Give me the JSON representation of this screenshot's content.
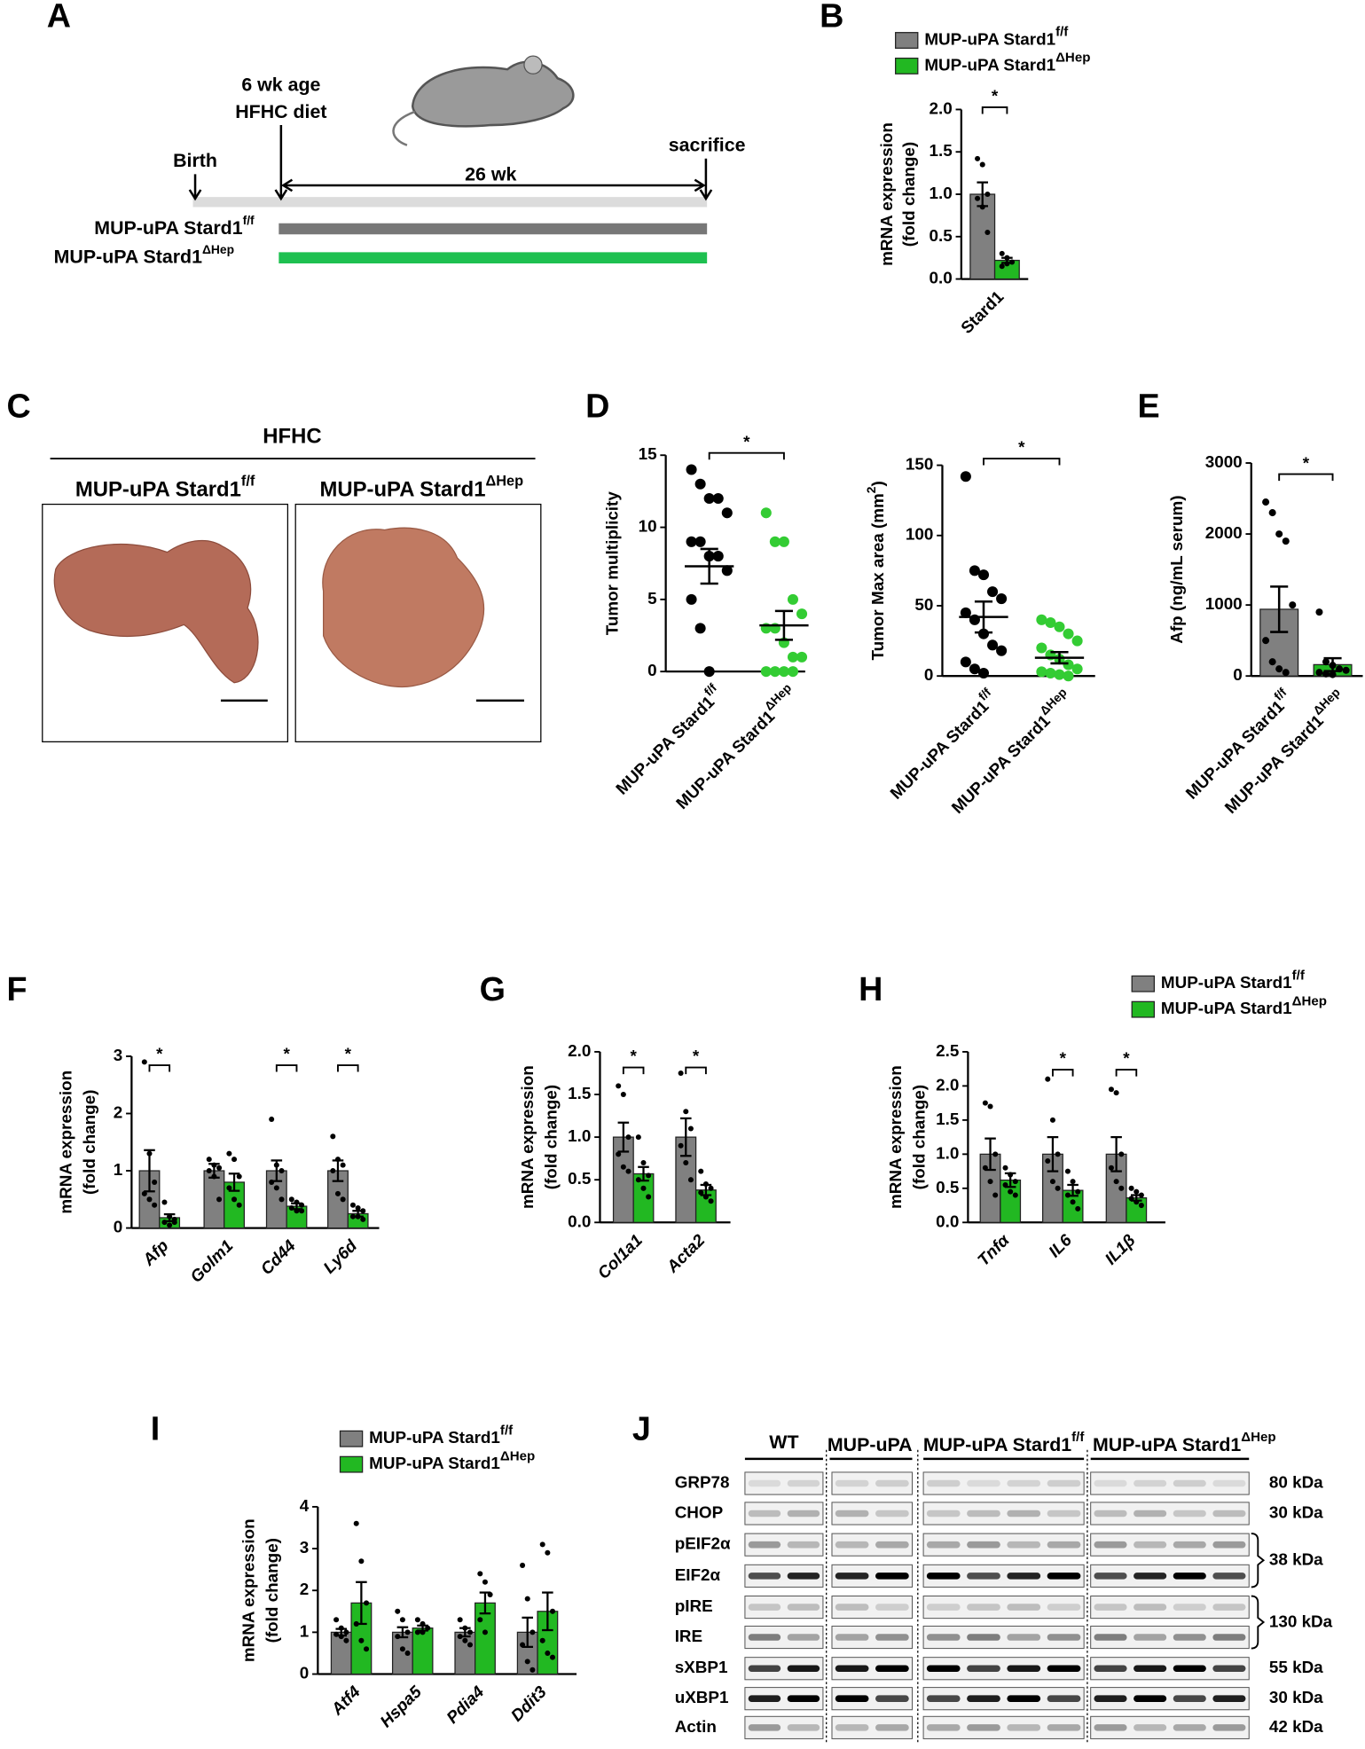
{
  "panels": [
    "A",
    "B",
    "C",
    "D",
    "E",
    "F",
    "G",
    "H",
    "I",
    "J"
  ],
  "timeline": {
    "age": "6 wk age",
    "diet": "HFHC diet",
    "birth": "Birth",
    "duration": "26 wk",
    "end": "sacrifice",
    "groups": [
      {
        "name": "MUP-uPA Stard1",
        "sup": "f/f"
      },
      {
        "name": "MUP-uPA Stard1",
        "sup": "ΔHep"
      }
    ]
  },
  "liver": {
    "condition": "HFHC",
    "groups": [
      {
        "name": "MUP-uPA Stard1",
        "sup": "f/f"
      },
      {
        "name": "MUP-uPA Stard1",
        "sup": "ΔHep"
      }
    ]
  },
  "blot": {
    "groups": [
      {
        "name": "WT"
      },
      {
        "name": "MUP-uPA"
      },
      {
        "name": "MUP-uPA Stard1",
        "sup": "f/f"
      },
      {
        "name": "MUP-uPA Stard1",
        "sup": "ΔHep"
      }
    ],
    "rows": [
      "GRP78",
      "CHOP",
      "pEIF2α",
      "EIF2α",
      "pIRE",
      "IRE",
      "sXBP1",
      "uXBP1",
      "Actin"
    ],
    "sizes": [
      "80 kDa",
      "30 kDa",
      "38 kDa",
      "130 kDa",
      "55 kDa",
      "30 kDa",
      "42 kDa"
    ]
  },
  "chart_data": [
    {
      "type": "bar",
      "ylabel": [
        "mRNA expression",
        "(fold change)"
      ],
      "categories": [
        "Stard1"
      ],
      "italic_categories": false,
      "ylim": [
        0,
        2
      ],
      "yticks": [
        {
          "value": 0,
          "label": "0.0"
        },
        {
          "value": 0.5,
          "label": "0.5"
        },
        {
          "value": 1,
          "label": "1.0"
        },
        {
          "value": 1.5,
          "label": "1.5"
        },
        {
          "value": 2,
          "label": "2.0"
        }
      ],
      "significance": [
        "*"
      ],
      "legend": true,
      "series": [
        {
          "name": "MUP-uPA Stard1",
          "sup": "f/f",
          "color": "#808080",
          "values": [
            1.0
          ],
          "errors": [
            0.14
          ],
          "points": [
            [
              1.42,
              1.35,
              1.0,
              0.95,
              0.85,
              0.55
            ]
          ]
        },
        {
          "name": "MUP-uPA Stard1",
          "sup": "ΔHep",
          "color": "#22b822",
          "values": [
            0.22
          ],
          "errors": [
            0.03
          ],
          "points": [
            [
              0.3,
              0.25,
              0.2,
              0.15,
              0.18
            ]
          ]
        }
      ]
    },
    {
      "type": "dot",
      "ylabel": "Tumor multiplicity",
      "categories": [
        "MUP-uPA Stard1",
        "MUP-uPA Stard1"
      ],
      "category_sups": [
        "f/f",
        "ΔHep"
      ],
      "ylim": [
        0,
        15
      ],
      "yticks": [
        0,
        5,
        10,
        15
      ],
      "significance": "*",
      "colors": [
        "#000000",
        "#33cc33"
      ],
      "means": [
        7.3,
        3.2
      ],
      "errors": [
        1.2,
        1.0
      ],
      "points": [
        [
          14,
          13,
          12,
          12,
          11,
          9,
          9,
          8,
          8,
          7,
          5,
          3,
          0
        ],
        [
          11,
          9,
          9,
          5,
          4,
          3,
          3,
          2,
          1,
          1,
          0,
          0,
          0,
          0
        ]
      ]
    },
    {
      "type": "dot",
      "ylabel": "Tumor Max area (mm",
      "ylabel_sup": "2",
      "ylabel_end": ")",
      "categories": [
        "MUP-uPA Stard1",
        "MUP-uPA Stard1"
      ],
      "category_sups": [
        "f/f",
        "ΔHep"
      ],
      "ylim": [
        0,
        150
      ],
      "yticks": [
        0,
        50,
        100,
        150
      ],
      "significance": "*",
      "colors": [
        "#000000",
        "#33cc33"
      ],
      "means": [
        42,
        13
      ],
      "errors": [
        11,
        4
      ],
      "points": [
        [
          142,
          75,
          72,
          60,
          55,
          45,
          40,
          30,
          22,
          18,
          10,
          5,
          2
        ],
        [
          40,
          38,
          35,
          30,
          25,
          20,
          15,
          12,
          8,
          5,
          3,
          2,
          1,
          0
        ]
      ]
    },
    {
      "type": "dot",
      "bar": true,
      "ylabel": "Afp  (ng/mL serum)",
      "categories": [
        "MUP-uPA Stard1",
        "MUP-uPA Stard1"
      ],
      "category_sups": [
        "f/f",
        "ΔHep"
      ],
      "ylim": [
        0,
        3000
      ],
      "yticks": [
        0,
        1000,
        2000,
        3000
      ],
      "significance": "*",
      "colors": [
        "#808080",
        "#22b822"
      ],
      "point_color": "#000000",
      "means": [
        940,
        160
      ],
      "errors": [
        320,
        90
      ],
      "points": [
        [
          2450,
          2300,
          2000,
          1900,
          1000,
          500,
          200,
          100,
          50
        ],
        [
          900,
          200,
          150,
          100,
          80,
          50,
          30,
          20
        ]
      ]
    },
    {
      "type": "bar",
      "ylabel": [
        "mRNA expression",
        "(fold change)"
      ],
      "categories": [
        "Afp",
        "Golm1",
        "Cd44",
        "Ly6d"
      ],
      "italic_categories": true,
      "ylim": [
        0,
        3
      ],
      "yticks": [
        0,
        1,
        2,
        3
      ],
      "significance": [
        "*",
        null,
        "*",
        "*"
      ],
      "series": [
        {
          "color": "#808080",
          "values": [
            1.0,
            1.0,
            1.0,
            1.0
          ],
          "errors": [
            0.36,
            0.12,
            0.18,
            0.18
          ],
          "points": [
            [
              2.9,
              1.3,
              0.8,
              0.6,
              0.5,
              0.4
            ],
            [
              1.2,
              1.1,
              1.05,
              1.0,
              0.9,
              0.5
            ],
            [
              1.9,
              1.1,
              1.0,
              0.8,
              0.7,
              0.5
            ],
            [
              1.6,
              1.2,
              1.1,
              1.0,
              0.6,
              0.5
            ]
          ]
        },
        {
          "color": "#22b822",
          "values": [
            0.18,
            0.8,
            0.38,
            0.25
          ],
          "errors": [
            0.06,
            0.15,
            0.05,
            0.05
          ],
          "points": [
            [
              0.45,
              0.2,
              0.15,
              0.1,
              0.05,
              0.1
            ],
            [
              1.3,
              1.2,
              0.9,
              0.7,
              0.5,
              0.4
            ],
            [
              0.5,
              0.45,
              0.4,
              0.35,
              0.3,
              0.3
            ],
            [
              0.4,
              0.35,
              0.3,
              0.2,
              0.2,
              0.15
            ]
          ]
        }
      ]
    },
    {
      "type": "bar",
      "ylabel": [
        "mRNA expression",
        "(fold change)"
      ],
      "categories": [
        "Col1a1",
        "Acta2"
      ],
      "italic_categories": true,
      "ylim": [
        0,
        2
      ],
      "yticks": [
        {
          "value": 0,
          "label": "0.0"
        },
        {
          "value": 0.5,
          "label": "0.5"
        },
        {
          "value": 1,
          "label": "1.0"
        },
        {
          "value": 1.5,
          "label": "1.5"
        },
        {
          "value": 2,
          "label": "2.0"
        }
      ],
      "significance": [
        "*",
        "*"
      ],
      "series": [
        {
          "color": "#808080",
          "values": [
            1.0,
            1.0
          ],
          "errors": [
            0.17,
            0.22
          ],
          "points": [
            [
              1.6,
              1.5,
              1.0,
              0.8,
              0.65,
              0.6
            ],
            [
              1.75,
              1.3,
              1.1,
              0.9,
              0.7,
              0.5
            ]
          ]
        },
        {
          "color": "#22b822",
          "values": [
            0.57,
            0.38
          ],
          "errors": [
            0.08,
            0.06
          ],
          "points": [
            [
              1.0,
              0.7,
              0.55,
              0.5,
              0.4,
              0.3
            ],
            [
              0.6,
              0.45,
              0.4,
              0.35,
              0.3,
              0.25
            ]
          ]
        }
      ]
    },
    {
      "type": "bar",
      "ylabel": [
        "mRNA expression",
        "(fold change)"
      ],
      "categories": [
        "Tnfα",
        "IL6",
        "IL1β"
      ],
      "italic_categories": true,
      "ylim": [
        0,
        2.5
      ],
      "yticks": [
        {
          "value": 0,
          "label": "0.0"
        },
        {
          "value": 0.5,
          "label": "0.5"
        },
        {
          "value": 1,
          "label": "1.0"
        },
        {
          "value": 1.5,
          "label": "1.5"
        },
        {
          "value": 2,
          "label": "2.0"
        },
        {
          "value": 2.5,
          "label": "2.5"
        }
      ],
      "significance": [
        null,
        "*",
        "*"
      ],
      "legend": true,
      "series": [
        {
          "name": "MUP-uPA Stard1",
          "sup": "f/f",
          "color": "#808080",
          "values": [
            1.0,
            1.0,
            1.0
          ],
          "errors": [
            0.23,
            0.25,
            0.25
          ],
          "points": [
            [
              1.75,
              1.7,
              1.0,
              0.8,
              0.6,
              0.4
            ],
            [
              2.1,
              1.5,
              1.0,
              0.9,
              0.6,
              0.5
            ],
            [
              1.95,
              1.9,
              1.0,
              0.8,
              0.6,
              0.5
            ]
          ]
        },
        {
          "name": "MUP-uPA Stard1",
          "sup": "ΔHep",
          "color": "#22b822",
          "values": [
            0.62,
            0.47,
            0.36
          ],
          "errors": [
            0.1,
            0.08,
            0.04
          ],
          "points": [
            [
              0.8,
              0.7,
              0.6,
              0.55,
              0.45,
              0.4
            ],
            [
              0.75,
              0.6,
              0.45,
              0.4,
              0.3,
              0.2
            ],
            [
              0.5,
              0.45,
              0.4,
              0.35,
              0.3,
              0.25
            ]
          ]
        }
      ]
    },
    {
      "type": "bar",
      "ylabel": [
        "mRNA expression",
        "(fold change)"
      ],
      "categories": [
        "Atf4",
        "Hspa5",
        "Pdia4",
        "Ddit3"
      ],
      "italic_categories": true,
      "ylim": [
        0,
        4
      ],
      "yticks": [
        0,
        1,
        2,
        3,
        4
      ],
      "legend": true,
      "series": [
        {
          "name": "MUP-uPA Stard1",
          "sup": "f/f",
          "color": "#808080",
          "values": [
            1.0,
            1.0,
            1.0,
            1.0
          ],
          "errors": [
            0.08,
            0.12,
            0.1,
            0.35
          ],
          "points": [
            [
              1.3,
              1.1,
              1.0,
              0.95,
              0.9,
              0.8
            ],
            [
              1.5,
              1.3,
              1.0,
              0.9,
              0.6,
              0.5
            ],
            [
              1.3,
              1.1,
              1.0,
              0.9,
              0.8,
              0.7
            ],
            [
              2.6,
              1.8,
              1.0,
              0.7,
              0.3,
              0.1
            ]
          ]
        },
        {
          "name": "MUP-uPA Stard1",
          "sup": "ΔHep",
          "color": "#22b822",
          "values": [
            1.7,
            1.1,
            1.7,
            1.5
          ],
          "errors": [
            0.5,
            0.06,
            0.25,
            0.45
          ],
          "points": [
            [
              3.6,
              2.7,
              1.7,
              1.2,
              0.8,
              0.6
            ],
            [
              1.3,
              1.2,
              1.1,
              1.0,
              1.0
            ],
            [
              2.4,
              2.2,
              1.9,
              1.3,
              1.0
            ],
            [
              3.1,
              2.9,
              1.5,
              0.8,
              0.5,
              0.4
            ]
          ]
        }
      ]
    }
  ]
}
